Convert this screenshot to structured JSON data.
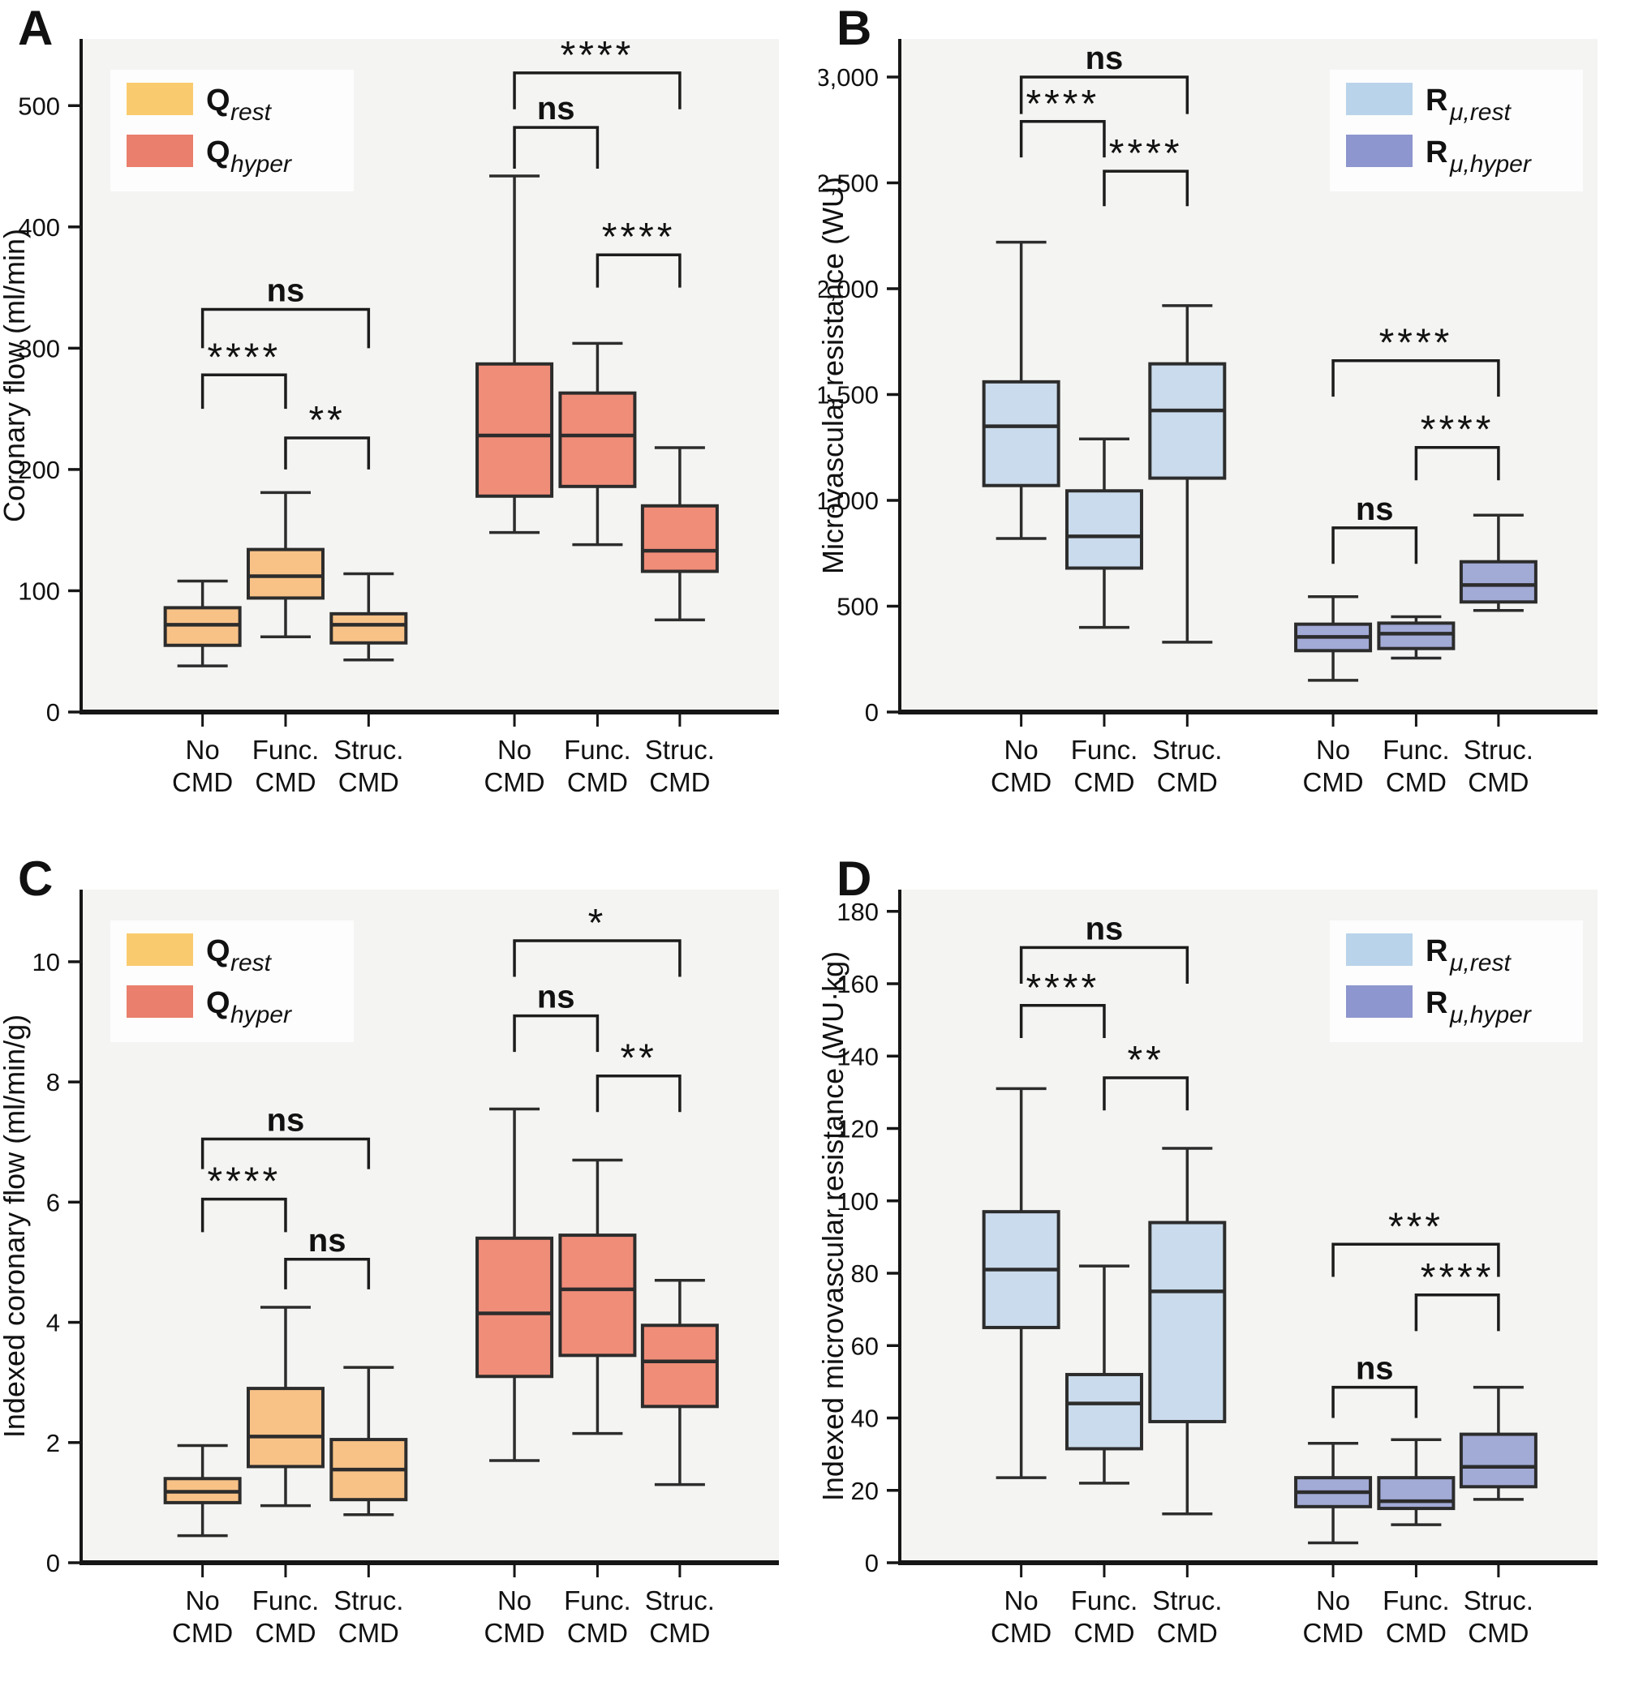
{
  "styles": {
    "plot_bg": "#f4f4f2",
    "legend_bg": "#fdfdfd",
    "axis_color": "#161616",
    "box_stroke": "#2c2c2c",
    "bracket_color": "#1c1c1c",
    "text_color": "#111111"
  },
  "box_format": [
    "whisker_low",
    "q1",
    "median",
    "q3",
    "whisker_high"
  ],
  "chart_data": [
    {
      "panel": "A",
      "type": "box",
      "ylabel": "Coronary flow (ml/min)",
      "ylim": [
        0,
        555
      ],
      "yticks": [
        0,
        100,
        200,
        300,
        400,
        500
      ],
      "ytick_labels": [
        "0",
        "100",
        "200",
        "300",
        "400",
        "500"
      ],
      "categories": [
        "No CMD",
        "Func. CMD",
        "Struc. CMD",
        "No CMD",
        "Func. CMD",
        "Struc. CMD"
      ],
      "category_lines": [
        [
          "No",
          "CMD"
        ],
        [
          "Func.",
          "CMD"
        ],
        [
          "Struc.",
          "CMD"
        ]
      ],
      "legend": {
        "position": "top-left",
        "items": [
          {
            "label": "Q_rest",
            "main": "Q",
            "sub": "rest",
            "color": "#FACB6E"
          },
          {
            "label": "Q_hyper",
            "main": "Q",
            "sub": "hyper",
            "color": "#E97F6C"
          }
        ]
      },
      "series": [
        {
          "name": "Q_rest",
          "box_fill": "#F8C287",
          "boxes": [
            [
              38,
              55,
              72,
              86,
              108
            ],
            [
              62,
              94,
              112,
              134,
              181
            ],
            [
              43,
              57,
              72,
              81,
              114
            ]
          ]
        },
        {
          "name": "Q_hyper",
          "box_fill": "#F08D79",
          "boxes": [
            [
              148,
              178,
              228,
              287,
              442
            ],
            [
              138,
              186,
              228,
              263,
              304
            ],
            [
              76,
              116,
              133,
              170,
              218
            ]
          ]
        }
      ],
      "brackets": [
        {
          "series": 0,
          "from": 0,
          "to": 2,
          "y": 332,
          "drop": 32,
          "label": "ns"
        },
        {
          "series": 0,
          "from": 0,
          "to": 1,
          "y": 278,
          "drop": 28,
          "label": "****"
        },
        {
          "series": 0,
          "from": 1,
          "to": 2,
          "y": 226,
          "drop": 26,
          "label": "**"
        },
        {
          "series": 1,
          "from": 0,
          "to": 2,
          "y": 527,
          "drop": 30,
          "label": "****"
        },
        {
          "series": 1,
          "from": 0,
          "to": 1,
          "y": 482,
          "drop": 34,
          "label": "ns"
        },
        {
          "series": 1,
          "from": 1,
          "to": 2,
          "y": 377,
          "drop": 27,
          "label": "****"
        }
      ]
    },
    {
      "panel": "B",
      "type": "box",
      "ylabel": "Microvascular resistance (WU)",
      "ylim": [
        0,
        3180
      ],
      "yticks": [
        0,
        500,
        1000,
        1500,
        2000,
        2500,
        3000
      ],
      "ytick_labels": [
        "0",
        "500",
        "1,000",
        "1,500",
        "2,000",
        "2,500",
        "3,000"
      ],
      "categories": [
        "No CMD",
        "Func. CMD",
        "Struc. CMD",
        "No CMD",
        "Func. CMD",
        "Struc. CMD"
      ],
      "category_lines": [
        [
          "No",
          "CMD"
        ],
        [
          "Func.",
          "CMD"
        ],
        [
          "Struc.",
          "CMD"
        ]
      ],
      "legend": {
        "position": "top-right",
        "items": [
          {
            "label": "R_mu_rest",
            "main": "R",
            "sub": "μ,rest",
            "color": "#B9D3EA"
          },
          {
            "label": "R_mu_hyper",
            "main": "R",
            "sub": "μ,hyper",
            "color": "#8D96CE"
          }
        ]
      },
      "series": [
        {
          "name": "R_mu_rest",
          "box_fill": "#C9DBEC",
          "boxes": [
            [
              820,
              1070,
              1350,
              1560,
              2220
            ],
            [
              400,
              680,
              830,
              1045,
              1290
            ],
            [
              330,
              1105,
              1425,
              1645,
              1920
            ]
          ]
        },
        {
          "name": "R_mu_hyper",
          "box_fill": "#A2AAD6",
          "boxes": [
            [
              150,
              290,
              355,
              415,
              545
            ],
            [
              255,
              300,
              370,
              420,
              450
            ],
            [
              480,
              520,
              600,
              710,
              930
            ]
          ]
        }
      ],
      "brackets": [
        {
          "series": 0,
          "from": 0,
          "to": 2,
          "y": 3000,
          "drop": 175,
          "label": "ns"
        },
        {
          "series": 0,
          "from": 0,
          "to": 1,
          "y": 2790,
          "drop": 170,
          "label": "****"
        },
        {
          "series": 0,
          "from": 1,
          "to": 2,
          "y": 2555,
          "drop": 165,
          "label": "****"
        },
        {
          "series": 1,
          "from": 0,
          "to": 2,
          "y": 1660,
          "drop": 170,
          "label": "****"
        },
        {
          "series": 1,
          "from": 1,
          "to": 2,
          "y": 1250,
          "drop": 155,
          "label": "****"
        },
        {
          "series": 1,
          "from": 0,
          "to": 1,
          "y": 870,
          "drop": 170,
          "label": "ns"
        }
      ]
    },
    {
      "panel": "C",
      "type": "box",
      "ylabel": "Indexed coronary flow (ml/min/g)",
      "ylim": [
        0,
        11.2
      ],
      "yticks": [
        0,
        2,
        4,
        6,
        8,
        10
      ],
      "ytick_labels": [
        "0",
        "2",
        "4",
        "6",
        "8",
        "10"
      ],
      "categories": [
        "No CMD",
        "Func. CMD",
        "Struc. CMD",
        "No CMD",
        "Func. CMD",
        "Struc. CMD"
      ],
      "category_lines": [
        [
          "No",
          "CMD"
        ],
        [
          "Func.",
          "CMD"
        ],
        [
          "Struc.",
          "CMD"
        ]
      ],
      "legend": {
        "position": "top-left",
        "items": [
          {
            "label": "Q_rest",
            "main": "Q",
            "sub": "rest",
            "color": "#FACB6E"
          },
          {
            "label": "Q_hyper",
            "main": "Q",
            "sub": "hyper",
            "color": "#E97F6C"
          }
        ]
      },
      "series": [
        {
          "name": "Q_rest",
          "box_fill": "#F8C287",
          "boxes": [
            [
              0.45,
              1.0,
              1.18,
              1.4,
              1.95
            ],
            [
              0.95,
              1.6,
              2.1,
              2.9,
              4.25
            ],
            [
              0.8,
              1.05,
              1.55,
              2.05,
              3.25
            ]
          ]
        },
        {
          "name": "Q_hyper",
          "box_fill": "#F08D79",
          "boxes": [
            [
              1.7,
              3.1,
              4.15,
              5.4,
              7.55
            ],
            [
              2.15,
              3.45,
              4.55,
              5.45,
              6.7
            ],
            [
              1.3,
              2.6,
              3.35,
              3.95,
              4.7
            ]
          ]
        }
      ],
      "brackets": [
        {
          "series": 0,
          "from": 0,
          "to": 2,
          "y": 7.05,
          "drop": 0.5,
          "label": "ns"
        },
        {
          "series": 0,
          "from": 0,
          "to": 1,
          "y": 6.05,
          "drop": 0.55,
          "label": "****"
        },
        {
          "series": 0,
          "from": 1,
          "to": 2,
          "y": 5.05,
          "drop": 0.5,
          "label": "ns"
        },
        {
          "series": 1,
          "from": 0,
          "to": 2,
          "y": 10.35,
          "drop": 0.6,
          "label": "*"
        },
        {
          "series": 1,
          "from": 0,
          "to": 1,
          "y": 9.1,
          "drop": 0.6,
          "label": "ns"
        },
        {
          "series": 1,
          "from": 1,
          "to": 2,
          "y": 8.1,
          "drop": 0.6,
          "label": "**"
        }
      ]
    },
    {
      "panel": "D",
      "type": "box",
      "ylabel": "Indexed microvascular resistance (WU·kg)",
      "ylim": [
        0,
        186
      ],
      "yticks": [
        0,
        20,
        40,
        60,
        80,
        100,
        120,
        140,
        160,
        180
      ],
      "ytick_labels": [
        "0",
        "20",
        "40",
        "60",
        "80",
        "100",
        "120",
        "140",
        "160",
        "180"
      ],
      "categories": [
        "No CMD",
        "Func. CMD",
        "Struc. CMD",
        "No CMD",
        "Func. CMD",
        "Struc. CMD"
      ],
      "category_lines": [
        [
          "No",
          "CMD"
        ],
        [
          "Func.",
          "CMD"
        ],
        [
          "Struc.",
          "CMD"
        ]
      ],
      "legend": {
        "position": "top-right",
        "items": [
          {
            "label": "R_mu_rest",
            "main": "R",
            "sub": "μ,rest",
            "color": "#B9D3EA"
          },
          {
            "label": "R_mu_hyper",
            "main": "R",
            "sub": "μ,hyper",
            "color": "#8D96CE"
          }
        ]
      },
      "series": [
        {
          "name": "R_mu_rest",
          "box_fill": "#C9DBEC",
          "boxes": [
            [
              23.5,
              65,
              81,
              97,
              131
            ],
            [
              22,
              31.5,
              44,
              52,
              82
            ],
            [
              13.5,
              39,
              75,
              94,
              114.5
            ]
          ]
        },
        {
          "name": "R_mu_hyper",
          "box_fill": "#A2AAD6",
          "boxes": [
            [
              5.5,
              15.5,
              19.5,
              23.5,
              33
            ],
            [
              10.5,
              15,
              17,
              23.5,
              34
            ],
            [
              17.5,
              21,
              26.5,
              35.5,
              48.5
            ]
          ]
        }
      ],
      "brackets": [
        {
          "series": 0,
          "from": 0,
          "to": 2,
          "y": 170,
          "drop": 10,
          "label": "ns"
        },
        {
          "series": 0,
          "from": 0,
          "to": 1,
          "y": 154,
          "drop": 9,
          "label": "****"
        },
        {
          "series": 0,
          "from": 1,
          "to": 2,
          "y": 134,
          "drop": 9,
          "label": "**"
        },
        {
          "series": 1,
          "from": 0,
          "to": 2,
          "y": 88,
          "drop": 9,
          "label": "***"
        },
        {
          "series": 1,
          "from": 1,
          "to": 2,
          "y": 74,
          "drop": 10,
          "label": "****"
        },
        {
          "series": 1,
          "from": 0,
          "to": 1,
          "y": 48.5,
          "drop": 8.5,
          "label": "ns"
        }
      ]
    }
  ]
}
